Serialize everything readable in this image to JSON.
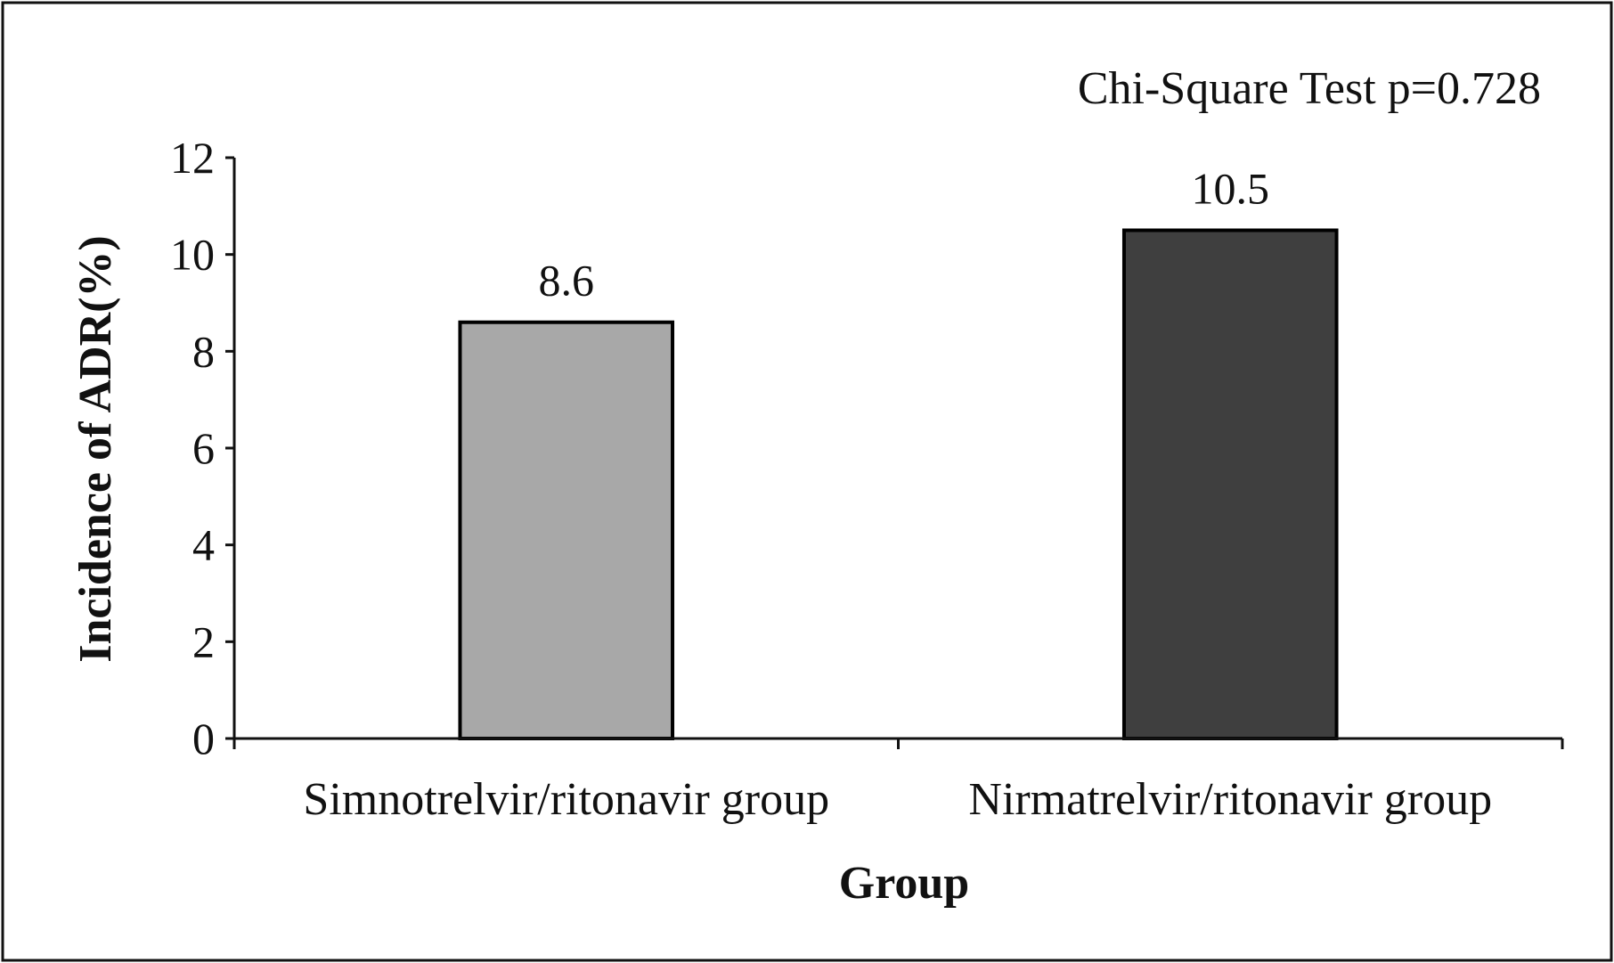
{
  "chart_data": {
    "type": "bar",
    "categories": [
      "Simnotrelvir/ritonavir group",
      "Nirmatrelvir/ritonavir group"
    ],
    "values": [
      8.6,
      10.5
    ],
    "data_labels": [
      "8.6",
      "10.5"
    ],
    "bar_colors": [
      "#a8a8a8",
      "#3f3f3f"
    ],
    "xlabel": "Group",
    "ylabel": "Incidence of ADR(%)",
    "ylim": [
      0,
      12
    ],
    "yticks": [
      0,
      2,
      4,
      6,
      8,
      10,
      12
    ],
    "annotation": "Chi-Square Test p=0.728",
    "grid": false,
    "legend": "none"
  }
}
